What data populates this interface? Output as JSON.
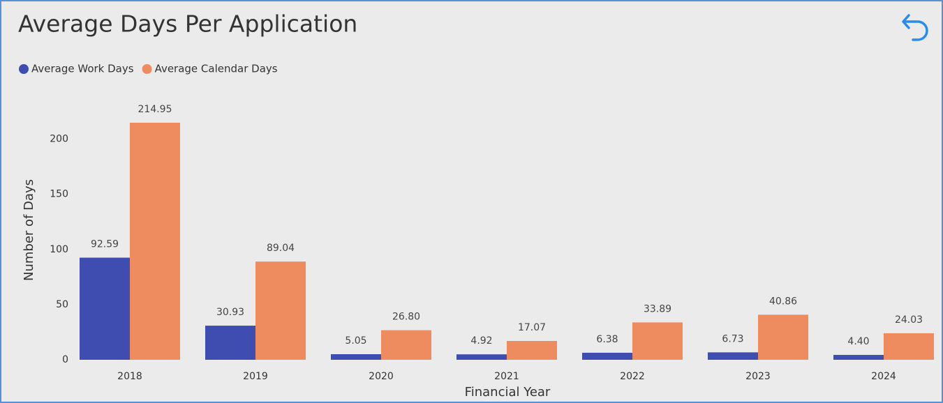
{
  "chart_data": {
    "type": "bar",
    "title": "Average Days Per Application",
    "xlabel": "Financial Year",
    "ylabel": "Number of Days",
    "categories": [
      "2018",
      "2019",
      "2020",
      "2021",
      "2022",
      "2023",
      "2024"
    ],
    "series": [
      {
        "name": "Average Work Days",
        "color": "#3f4db0",
        "values": [
          92.59,
          30.93,
          5.05,
          4.92,
          6.38,
          6.73,
          4.4
        ],
        "value_labels": [
          "92.59",
          "30.93",
          "5.05",
          "4.92",
          "6.38",
          "6.73",
          "4.40"
        ]
      },
      {
        "name": "Average Calendar Days",
        "color": "#ee8c5f",
        "values": [
          214.95,
          89.04,
          26.8,
          17.07,
          33.89,
          40.86,
          24.03
        ],
        "value_labels": [
          "214.95",
          "89.04",
          "26.80",
          "17.07",
          "33.89",
          "40.86",
          "24.03"
        ]
      }
    ],
    "ylim": [
      0,
      220
    ],
    "yticks": [
      0,
      50,
      100,
      150,
      200
    ],
    "grid": false,
    "legend": "top-left"
  }
}
